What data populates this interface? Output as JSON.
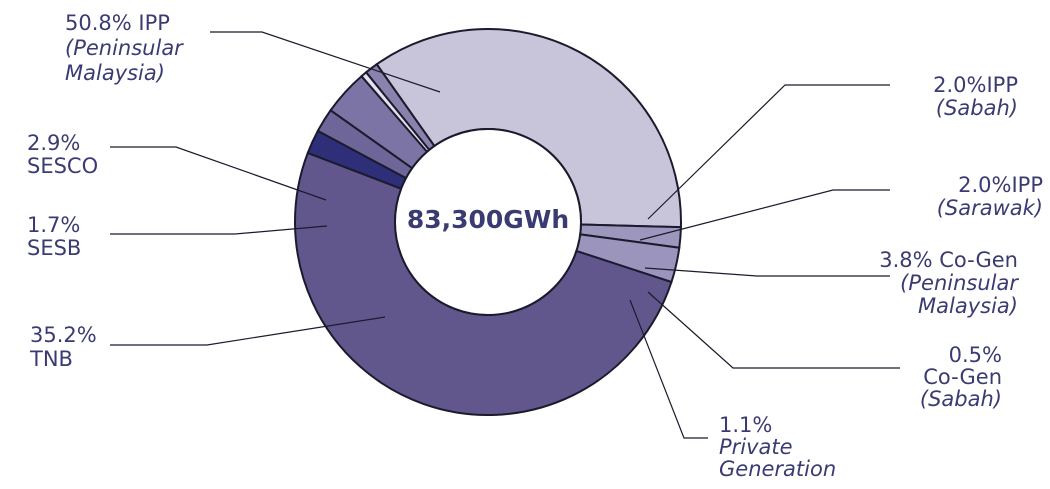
{
  "chart_data": {
    "type": "pie",
    "title": "",
    "center_label": "83,300GWh",
    "slices": [
      {
        "value": 50.8,
        "color": "#62578c",
        "lines": [
          "50.8% IPP",
          "(Peninsular",
          "Malaysia)"
        ]
      },
      {
        "value": 2.0,
        "color": "#2e2f78",
        "lines": [
          "2.0%IPP",
          "(Sabah)"
        ]
      },
      {
        "value": 2.0,
        "color": "#6e6699",
        "lines": [
          "2.0%IPP",
          "(Sarawak)"
        ]
      },
      {
        "value": 3.8,
        "color": "#7d74a6",
        "lines": [
          "3.8% Co-Gen",
          "(Peninsular",
          "Malaysia)"
        ]
      },
      {
        "value": 0.5,
        "color": "#e3e1ee",
        "lines": [
          "0.5%",
          "Co-Gen",
          "(Sabah)"
        ]
      },
      {
        "value": 1.1,
        "color": "#8a82ad",
        "lines": [
          "1.1%",
          "Private",
          "Generation"
        ]
      },
      {
        "value": 35.2,
        "color": "#c8c4d9",
        "lines": [
          "35.2%",
          "TNB"
        ]
      },
      {
        "value": 1.7,
        "color": "#9d96bd",
        "lines": [
          "1.7%",
          "SESB"
        ]
      },
      {
        "value": 2.9,
        "color": "#9b94bc",
        "lines": [
          "2.9%",
          "SESCO"
        ]
      }
    ]
  }
}
